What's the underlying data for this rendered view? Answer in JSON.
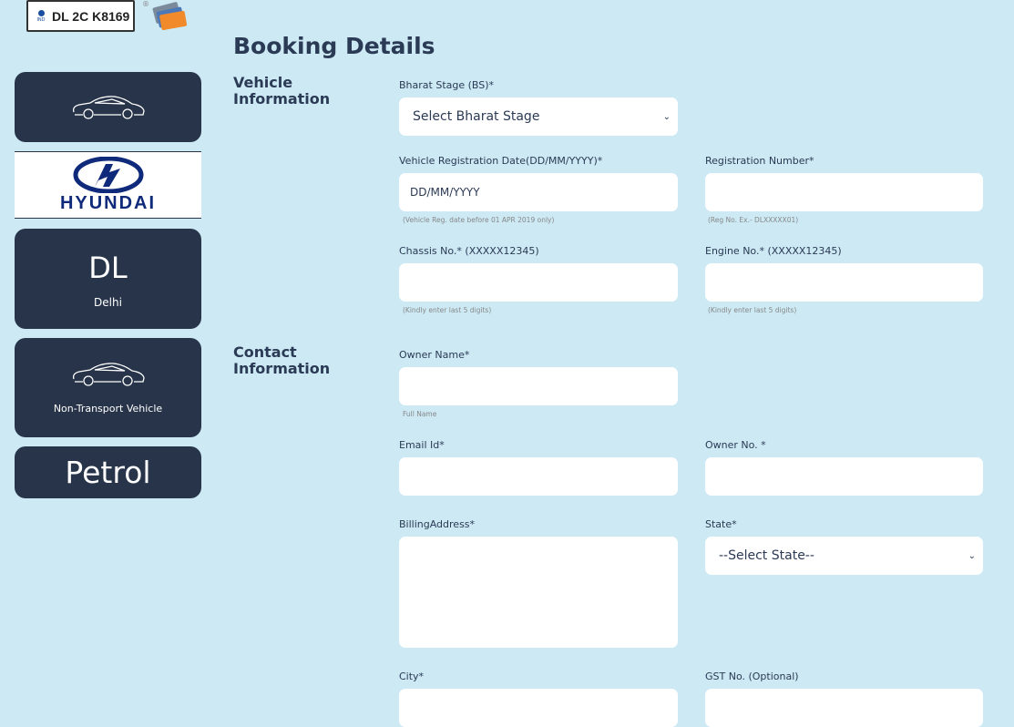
{
  "brand": {
    "plate_text": "DL 2C K8169",
    "plate_country": "IND",
    "registered_mark": "®"
  },
  "sidebar": {
    "vehicle_type_icon": "car-icon",
    "make": "HYUNDAI",
    "state_code": "DL",
    "state_name": "Delhi",
    "category": "Non-Transport Vehicle",
    "fuel": "Petrol"
  },
  "page": {
    "title": "Booking Details"
  },
  "vehicle_section": {
    "title_line1": "Vehicle",
    "title_line2": "Information",
    "bs_label": "Bharat Stage (BS)*",
    "bs_value": "Select Bharat Stage",
    "regdate_label": "Vehicle Registration Date(DD/MM/YYYY)*",
    "regdate_placeholder": "DD/MM/YYYY",
    "regdate_hint": "(Vehicle Reg. date before 01 APR 2019 only)",
    "regno_label": "Registration Number*",
    "regno_hint": "(Reg No. Ex.- DLXXXXX01)",
    "chassis_label": "Chassis No.* (XXXXX12345)",
    "chassis_hint": "(Kindly enter last 5 digits)",
    "engine_label": "Engine No.* (XXXXX12345)",
    "engine_hint": "(Kindly enter last 5 digits)"
  },
  "contact_section": {
    "title_line1": "Contact",
    "title_line2": "Information",
    "owner_label": "Owner Name*",
    "owner_hint": "Full Name",
    "email_label": "Email Id*",
    "phone_label": "Owner No. *",
    "address_label": "BillingAddress*",
    "state_label": "State*",
    "state_value": "--Select State--",
    "city_label": "City*",
    "gst_label": "GST No. (Optional)"
  },
  "colors": {
    "background": "#cce9f4",
    "card": "#273449",
    "hyundai": "#0f2a7a"
  }
}
